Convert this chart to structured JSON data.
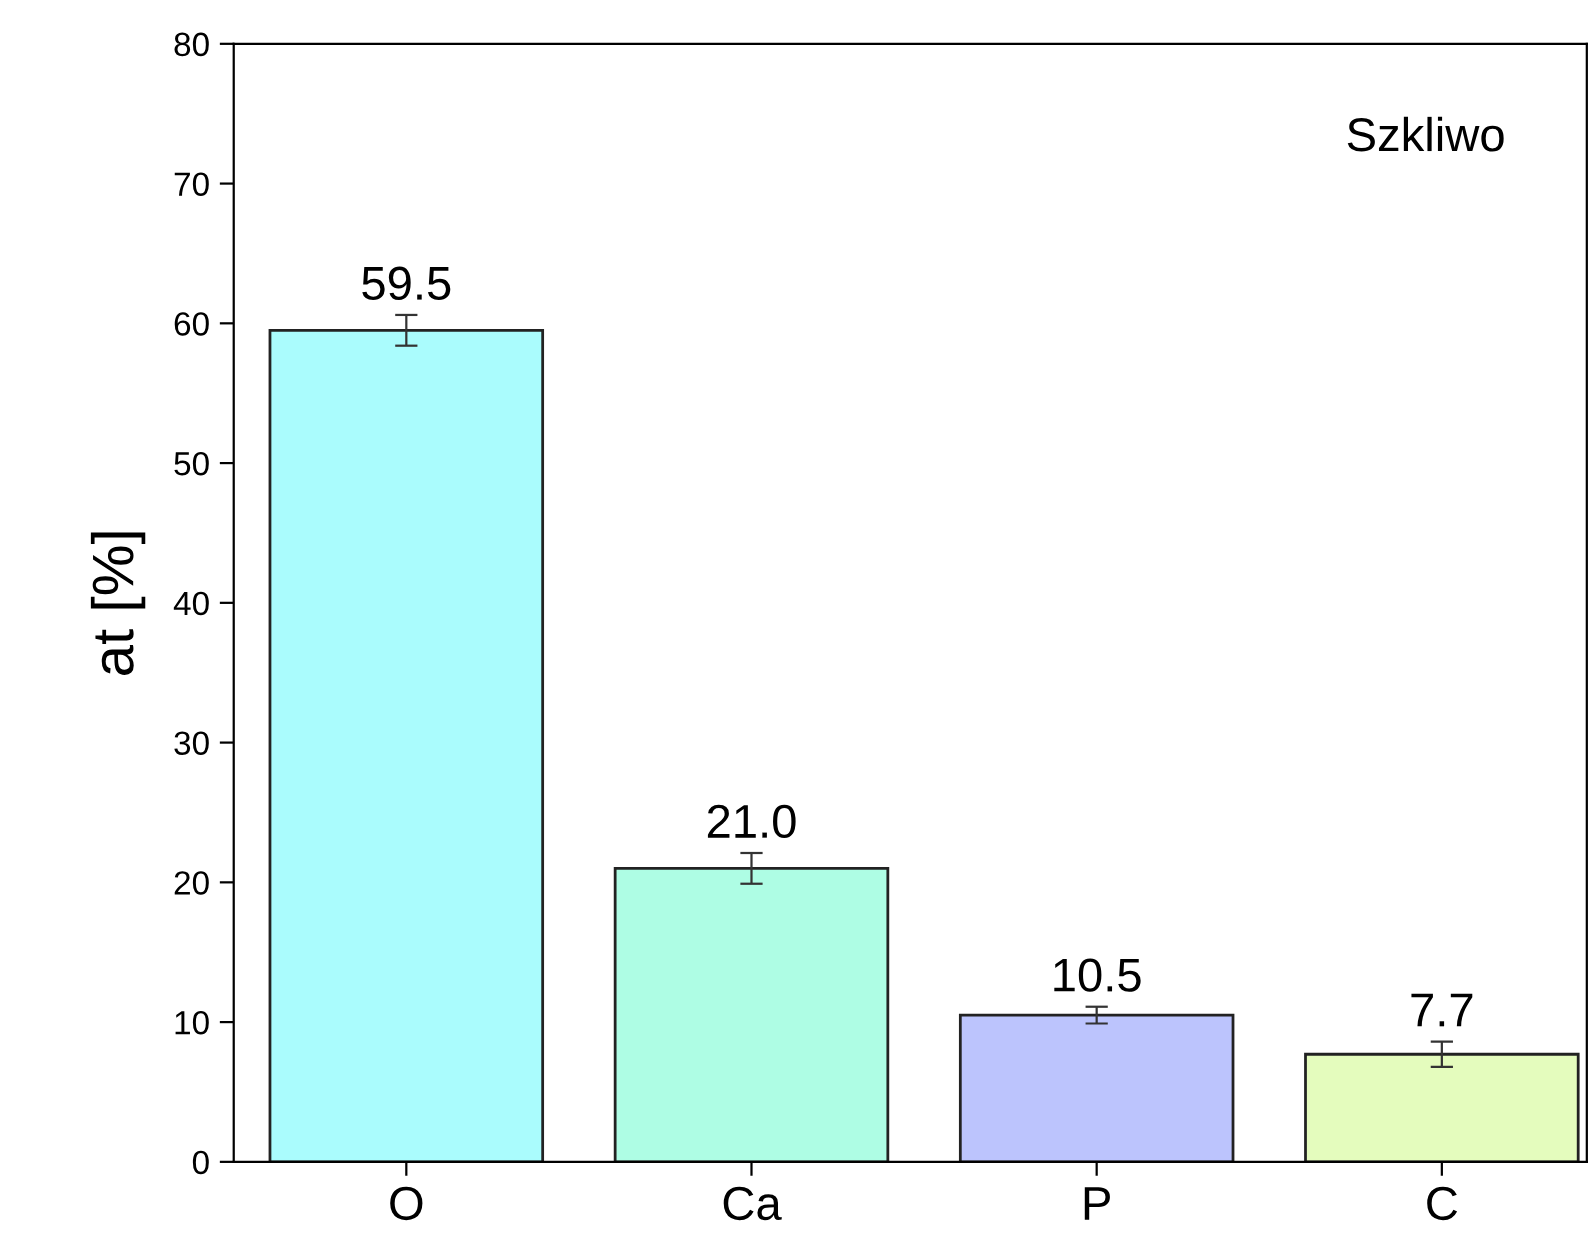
{
  "chart_data": {
    "type": "bar",
    "ylabel": "at [%]",
    "categories": [
      "O",
      "Ca",
      "P",
      "C"
    ],
    "values": [
      59.5,
      21.0,
      10.5,
      7.7
    ],
    "errors": [
      1.1,
      1.1,
      0.6,
      0.9
    ],
    "colors": [
      "#aafcfd",
      "#aefde4",
      "#bcc4fd",
      "#e4fcbd"
    ],
    "value_labels": [
      "59.5",
      "21.0",
      "10.5",
      "7.7"
    ],
    "annotations": [
      "Szkliwo"
    ],
    "ylim": [
      0,
      80
    ],
    "yticks": [
      0,
      10,
      20,
      30,
      40,
      50,
      60,
      70,
      80
    ],
    "grid": false,
    "legend": false
  }
}
